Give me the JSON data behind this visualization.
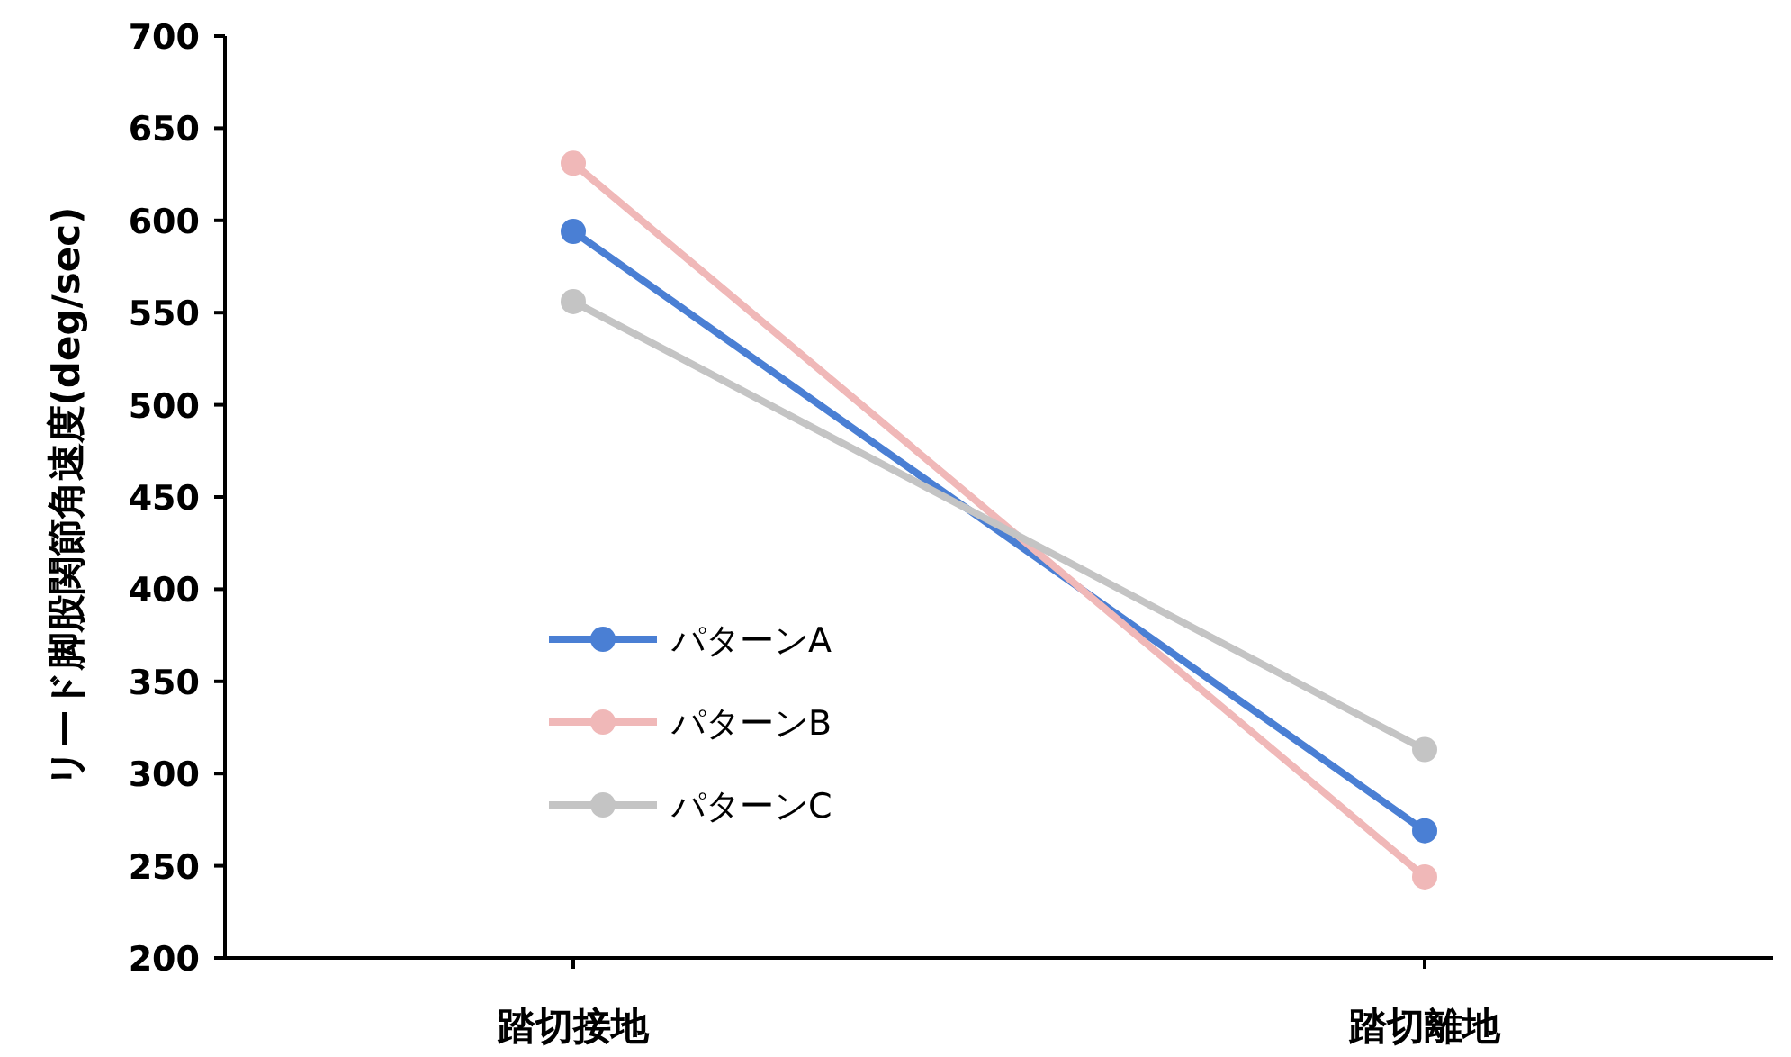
{
  "chart_data": {
    "type": "line",
    "ylabel": "リード脚股関節角速度(deg/sec)",
    "categories": [
      "踏切接地",
      "踏切離地"
    ],
    "series": [
      {
        "name": "パターンA",
        "color": "#4a7fd4",
        "values": [
          594,
          269
        ]
      },
      {
        "name": "パターンB",
        "color": "#f0b8b8",
        "values": [
          631,
          244
        ]
      },
      {
        "name": "パターンC",
        "color": "#c4c4c4",
        "values": [
          556,
          313
        ]
      }
    ],
    "ylim": [
      200,
      700
    ],
    "yticks": [
      200,
      250,
      300,
      350,
      400,
      450,
      500,
      550,
      600,
      650,
      700
    ],
    "grid": false,
    "legend": "left",
    "marker": "circle",
    "line_style": "solid"
  }
}
